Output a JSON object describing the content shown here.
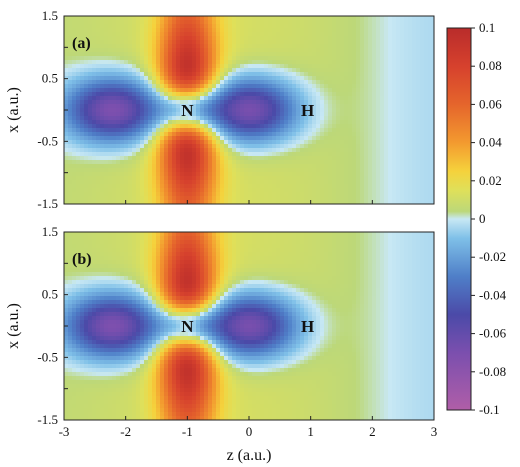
{
  "chart_data": [
    {
      "type": "heatmap",
      "panel_label": "(a)",
      "xlabel": "z (a.u.)",
      "ylabel": "x (a.u.)",
      "xlim": [
        -3,
        3
      ],
      "ylim": [
        -1.5,
        1.5
      ],
      "x_ticks": [
        "-3",
        "-2",
        "-1",
        "0",
        "1",
        "2",
        "3"
      ],
      "y_ticks": [
        "1.5",
        "0.5",
        "-0.5",
        "-1.5"
      ],
      "atoms": [
        {
          "label": "N",
          "z": -1.0,
          "x": 0.0
        },
        {
          "label": "H",
          "z": 0.95,
          "x": 0.0
        }
      ],
      "lobes": {
        "negative_center_z": [
          -2.2,
          0.0
        ],
        "positive_along_x_at_z": -1.0,
        "positive_peak": 0.09,
        "negative_peak": -0.08
      }
    },
    {
      "type": "heatmap",
      "panel_label": "(b)",
      "xlabel": "z (a.u.)",
      "ylabel": "x (a.u.)",
      "xlim": [
        -3,
        3
      ],
      "ylim": [
        -1.5,
        1.5
      ],
      "x_ticks": [
        "-3",
        "-2",
        "-1",
        "0",
        "1",
        "2",
        "3"
      ],
      "y_ticks": [
        "1.5",
        "0.5",
        "-0.5",
        "-1.5"
      ],
      "atoms": [
        {
          "label": "N",
          "z": -1.0,
          "x": 0.0
        },
        {
          "label": "H",
          "z": 0.95,
          "x": 0.0
        }
      ],
      "lobes": {
        "negative_center_z": [
          -2.2,
          0.0
        ],
        "positive_along_x_at_z": -1.0,
        "positive_peak": 0.09,
        "negative_peak": -0.08
      }
    }
  ],
  "colorbar": {
    "min": -0.1,
    "max": 0.1,
    "tick_values": [
      0.1,
      0.08,
      0.06,
      0.04,
      0.02,
      0,
      -0.02,
      -0.04,
      -0.06,
      -0.08,
      -0.1
    ],
    "tick_labels": [
      "0.1",
      "0.08",
      "0.06",
      "0.04",
      "0.02",
      "0",
      "-0.02",
      "-0.04",
      "-0.06",
      "-0.08",
      "-0.1"
    ],
    "stops": [
      {
        "v": -0.1,
        "color": "#b05ea8"
      },
      {
        "v": -0.07,
        "color": "#7b4fae"
      },
      {
        "v": -0.05,
        "color": "#4b4aa8"
      },
      {
        "v": -0.03,
        "color": "#4f7fc8"
      },
      {
        "v": -0.01,
        "color": "#7fc0e8"
      },
      {
        "v": 0.0,
        "color": "#c8e8f4"
      },
      {
        "v": 0.004,
        "color": "#bcd879"
      },
      {
        "v": 0.015,
        "color": "#dfe05a"
      },
      {
        "v": 0.025,
        "color": "#f5d23c"
      },
      {
        "v": 0.04,
        "color": "#f39a2f"
      },
      {
        "v": 0.06,
        "color": "#e5652c"
      },
      {
        "v": 0.08,
        "color": "#d6412d"
      },
      {
        "v": 0.1,
        "color": "#b92c2b"
      }
    ]
  },
  "axis_labels": {
    "x_axis": "z (a.u.)",
    "y_axis_top": "x (a.u.)",
    "y_axis_bottom": "x (a.u.)"
  }
}
